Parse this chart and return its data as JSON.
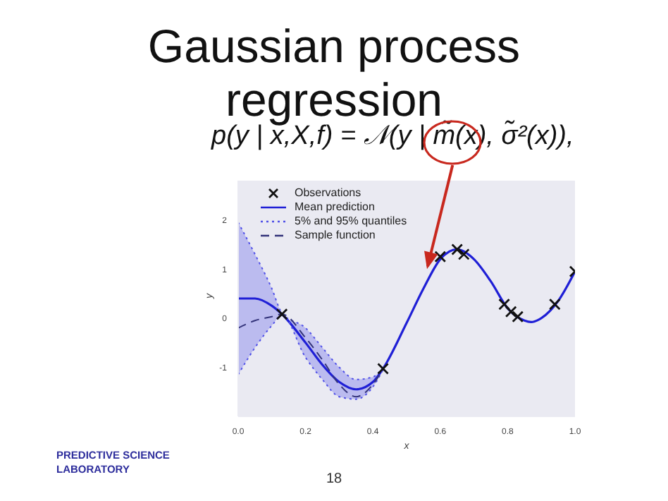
{
  "chart_data": {
    "type": "line",
    "title": "Gaussian process regression",
    "xlabel": "x",
    "ylabel": "y",
    "xlim": [
      0,
      1
    ],
    "ylim": [
      -2,
      2.8
    ],
    "xticks": [
      {
        "value": 0,
        "label": "0.0"
      },
      {
        "value": 0.2,
        "label": "0.2"
      },
      {
        "value": 0.4,
        "label": "0.4"
      },
      {
        "value": 0.6,
        "label": "0.6"
      },
      {
        "value": 0.8,
        "label": "0.8"
      },
      {
        "value": 1,
        "label": "1.0"
      }
    ],
    "yticks": [
      -1,
      0,
      1,
      2
    ],
    "grid": false,
    "legend": "top left",
    "series": [
      {
        "name": "Observations",
        "type": "scatter",
        "marker": "cross",
        "color": "#111111",
        "x": [
          0.13,
          0.43,
          0.6,
          0.65,
          0.67,
          0.79,
          0.81,
          0.83,
          0.94,
          1.0
        ],
        "values": [
          0.08,
          -1.03,
          1.25,
          1.4,
          1.3,
          0.28,
          0.13,
          0.03,
          0.28,
          0.95
        ]
      },
      {
        "name": "Mean prediction",
        "line_style": "solid",
        "color": "#1f1fd6",
        "x": [
          0,
          0.05,
          0.1,
          0.13,
          0.2,
          0.25,
          0.3,
          0.35,
          0.4,
          0.43,
          0.5,
          0.55,
          0.6,
          0.65,
          0.7,
          0.75,
          0.8,
          0.85,
          0.87,
          0.9,
          0.95,
          1.0
        ],
        "values": [
          0.4,
          0.4,
          0.25,
          0.08,
          -0.5,
          -0.95,
          -1.3,
          -1.45,
          -1.3,
          -1.03,
          -0.1,
          0.6,
          1.2,
          1.4,
          1.2,
          0.75,
          0.2,
          -0.05,
          -0.08,
          0.0,
          0.35,
          0.95
        ]
      },
      {
        "name": "5% and 95% quantiles",
        "line_style": "dotted",
        "color": "#5050e8",
        "x": [
          0,
          0.05,
          0.1,
          0.13,
          0.2,
          0.25,
          0.3,
          0.35,
          0.4,
          0.43
        ],
        "values": [
          -1.15,
          -0.6,
          -0.15,
          0.06,
          -0.8,
          -1.25,
          -1.6,
          -1.65,
          -1.4,
          -1.05
        ],
        "lower": [
          -1.15,
          -0.6,
          -0.15,
          0.06,
          -0.8,
          -1.25,
          -1.6,
          -1.65,
          -1.4,
          -1.05
        ],
        "upper": [
          1.95,
          1.3,
          0.6,
          0.1,
          -0.2,
          -0.6,
          -1.0,
          -1.25,
          -1.2,
          -1.0
        ]
      },
      {
        "line_style": "dotted",
        "color": "#5050e8",
        "x": [
          0,
          0.05,
          0.1,
          0.13,
          0.2,
          0.25,
          0.3,
          0.35,
          0.4,
          0.43
        ],
        "values": [
          1.95,
          1.3,
          0.6,
          0.1,
          -0.2,
          -0.6,
          -1.0,
          -1.25,
          -1.2,
          -1.0
        ]
      },
      {
        "name": "Sample function",
        "line_style": "dashed",
        "color": "#33337a",
        "x": [
          0,
          0.05,
          0.1,
          0.13,
          0.2,
          0.25,
          0.3,
          0.35,
          0.4,
          0.43
        ],
        "values": [
          -0.2,
          -0.05,
          0.03,
          0.08,
          -0.4,
          -0.85,
          -1.35,
          -1.6,
          -1.35,
          -1.03
        ]
      }
    ],
    "annotations": [
      {
        "text": "p(y | x,X,f) = 𝒩(y | m̃(x), σ̃²(x)),",
        "x": 0.56,
        "y": 1.0
      },
      "PREDICTIVE SCIENCE LABORATORY",
      "18"
    ]
  }
}
